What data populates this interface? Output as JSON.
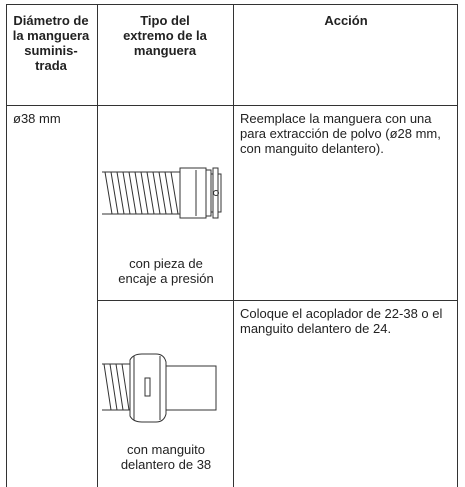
{
  "table": {
    "header": [
      "Diámetro de la manguera suminis-trada",
      "Tipo del extremo de la manguera",
      "Acción"
    ],
    "rows": [
      [
        "ø38 mm",
        "con pieza de encaje a presión",
        "Reemplace la manguera con una para extracción de polvo (ø28 mm, con manguito delantero)."
      ],
      [
        "con manguito delantero de 38",
        "Coloque el acoplador de 22-38 o el manguito delantero de 24."
      ]
    ]
  }
}
